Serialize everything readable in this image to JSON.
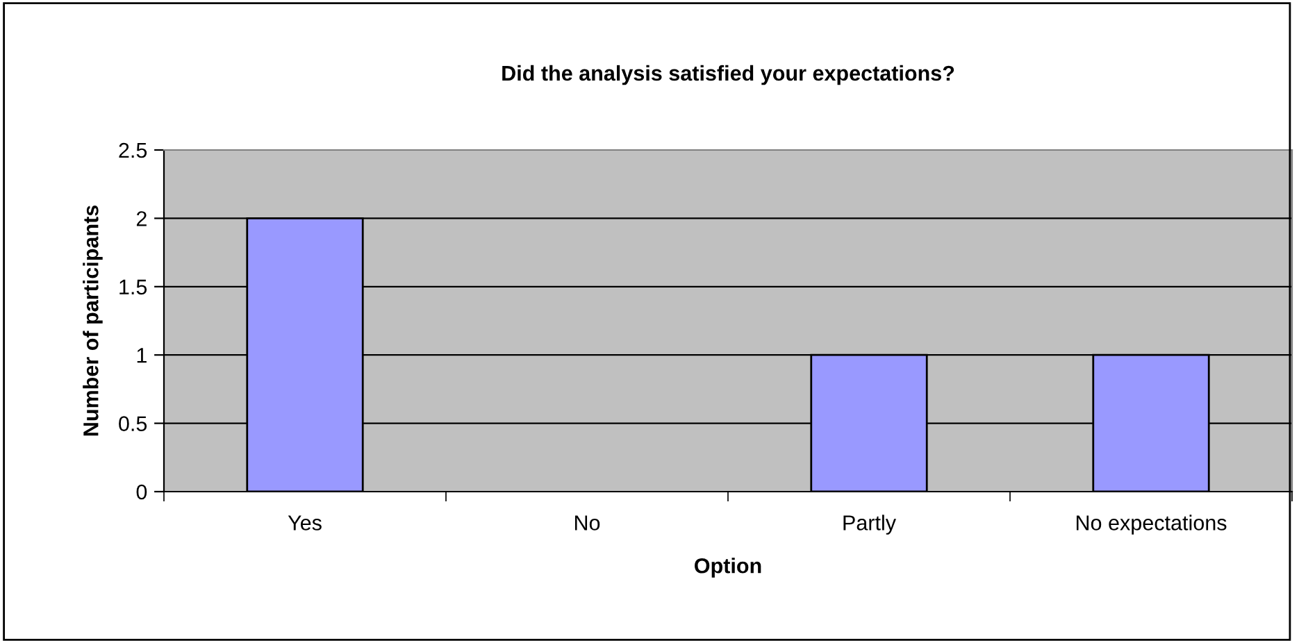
{
  "chart_data": {
    "type": "bar",
    "title": "Did the analysis satisfied your expectations?",
    "xlabel": "Option",
    "ylabel": "Number of participants",
    "categories": [
      "Yes",
      "No",
      "Partly",
      "No expectations"
    ],
    "values": [
      2,
      0,
      1,
      1
    ],
    "color": "#9999ff",
    "ylim": [
      0,
      2.5
    ],
    "yticks": [
      0,
      0.5,
      1,
      1.5,
      2,
      2.5
    ],
    "grid": "y"
  }
}
